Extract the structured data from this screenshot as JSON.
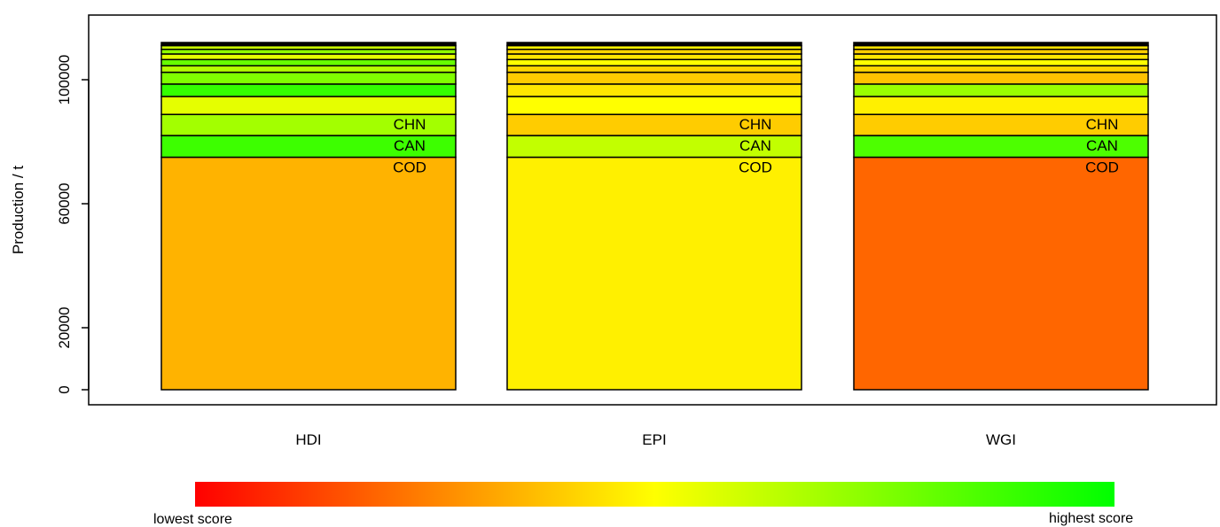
{
  "chart_data": {
    "type": "bar",
    "stacked": true,
    "ylabel": "Production  /  t",
    "ylim": [
      0,
      120000
    ],
    "yticks": [
      0,
      20000,
      60000,
      100000
    ],
    "ytick_labels": [
      "0",
      "20000",
      "60000",
      "100000"
    ],
    "grid": false,
    "categories": [
      "HDI",
      "EPI",
      "WGI"
    ],
    "segment_values": [
      75000,
      7000,
      6800,
      5800,
      4000,
      3800,
      2100,
      2000,
      1800,
      1500,
      1200,
      1000
    ],
    "segment_labels": [
      "COD",
      "CAN",
      "CHN",
      "",
      "",
      "",
      "",
      "",
      "",
      "",
      "",
      ""
    ],
    "segment_scores": [
      [
        0.35,
        0.88,
        0.68,
        0.55,
        0.9,
        0.75,
        0.65,
        0.8,
        0.55,
        0.72,
        0.6,
        0.0
      ],
      [
        0.47,
        0.62,
        0.4,
        0.5,
        0.45,
        0.4,
        0.42,
        0.5,
        0.45,
        0.42,
        0.48,
        0.0
      ],
      [
        0.2,
        0.85,
        0.4,
        0.47,
        0.7,
        0.38,
        0.42,
        0.5,
        0.45,
        0.4,
        0.45,
        0.0
      ]
    ],
    "top_segment_color": "#000000",
    "colorscale": {
      "stops": [
        "#ff0000",
        "#ffff00",
        "#00ff00"
      ],
      "low_label": "lowest score",
      "high_label": "highest score"
    }
  }
}
